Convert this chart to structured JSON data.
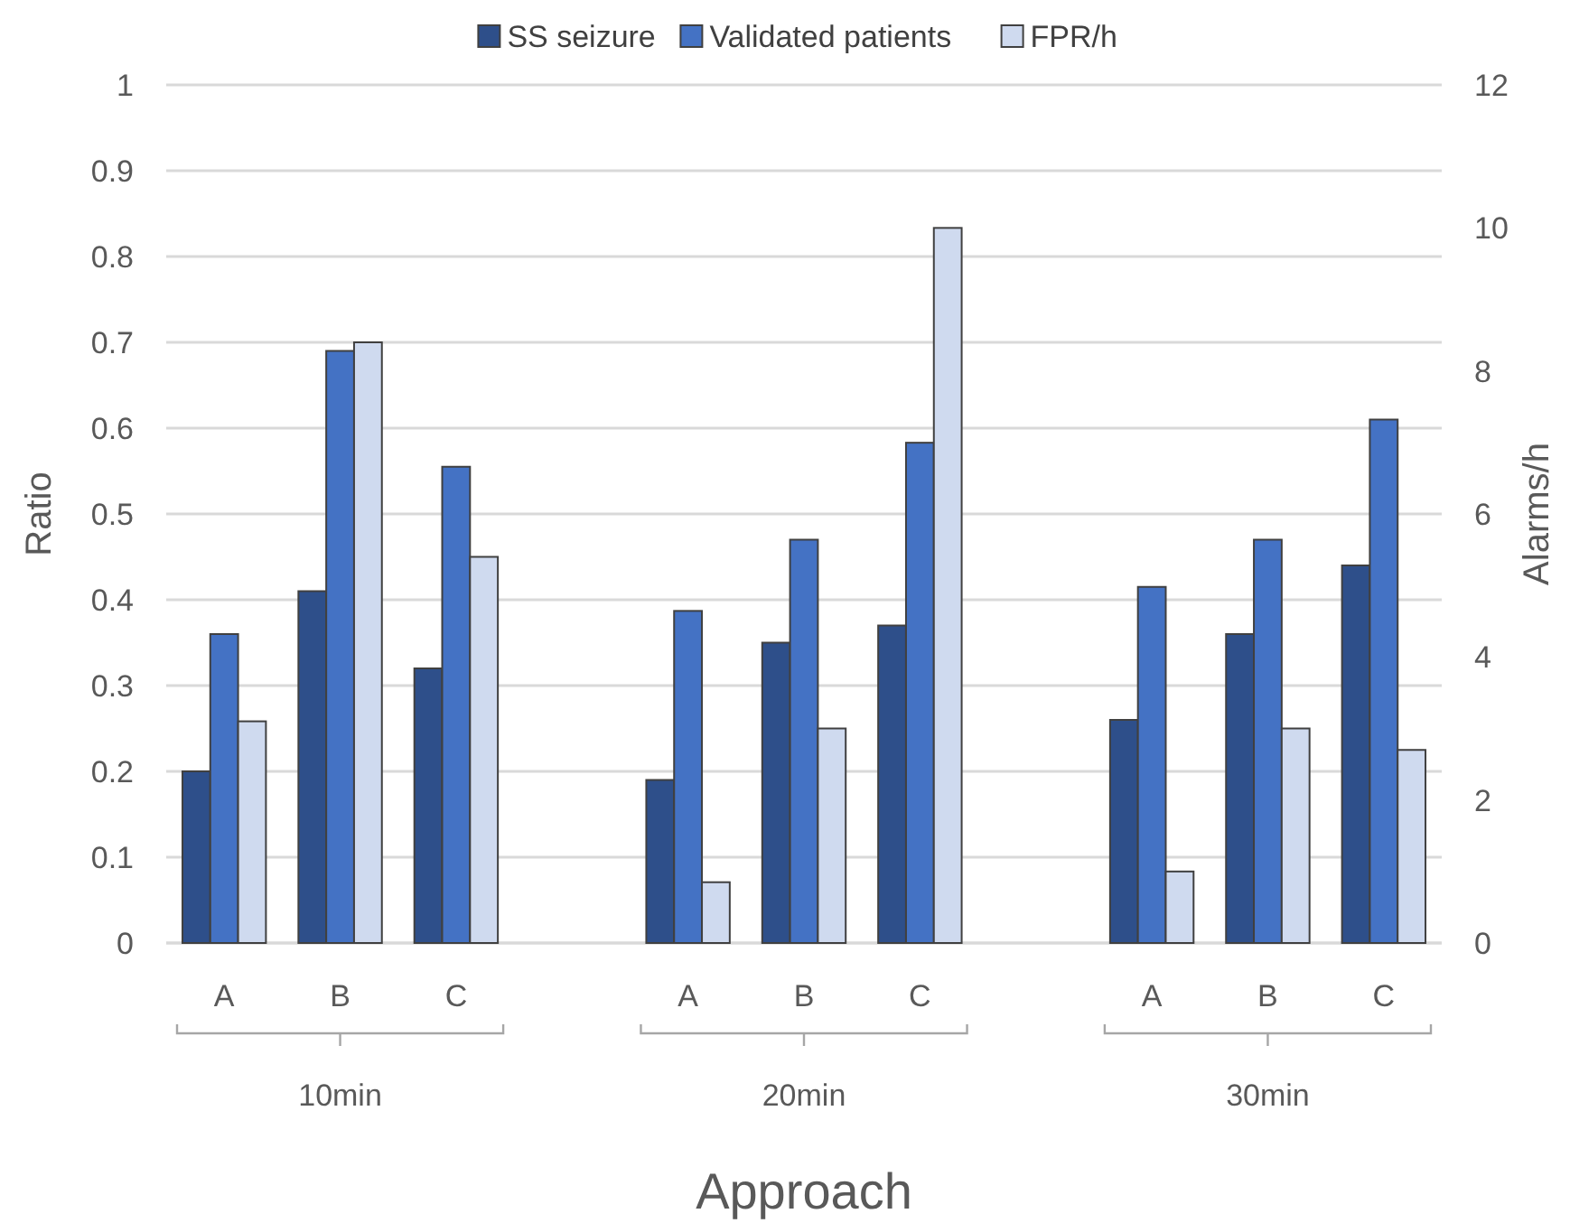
{
  "chart_data": {
    "type": "bar",
    "xlabel": "Approach",
    "ylabel": "Ratio",
    "y2label": "Alarms/h",
    "categories": [
      "A",
      "B",
      "C",
      null,
      "A",
      "B",
      "C",
      null,
      "A",
      "B",
      "C"
    ],
    "series": [
      {
        "name": "SS seizure",
        "color": "#2e4f8a",
        "values": [
          0.2,
          0.41,
          0.32,
          null,
          0.19,
          0.35,
          0.37,
          null,
          0.26,
          0.36,
          0.44
        ]
      },
      {
        "name": "Validated patients",
        "color": "#4472c4",
        "values": [
          0.36,
          0.69,
          0.555,
          null,
          0.387,
          0.47,
          0.583,
          null,
          0.415,
          0.47,
          0.61
        ]
      },
      {
        "name": "FPR/h",
        "color": "#cfdaef",
        "axis": "y2",
        "values": [
          3.1,
          8.4,
          5.4,
          null,
          0.85,
          3.0,
          10.0,
          null,
          1.0,
          3.0,
          2.7
        ]
      }
    ],
    "ylim": [
      0,
      1
    ],
    "yticks": [
      0,
      0.1,
      0.2,
      0.3,
      0.4,
      0.5,
      0.6,
      0.7,
      0.8,
      0.9,
      1
    ],
    "y2lim": [
      0,
      12
    ],
    "y2ticks": [
      0,
      2,
      4,
      6,
      8,
      10,
      12
    ],
    "annotations": [
      "10min",
      "20min",
      "30min"
    ],
    "grid": "y",
    "legend": "top"
  }
}
